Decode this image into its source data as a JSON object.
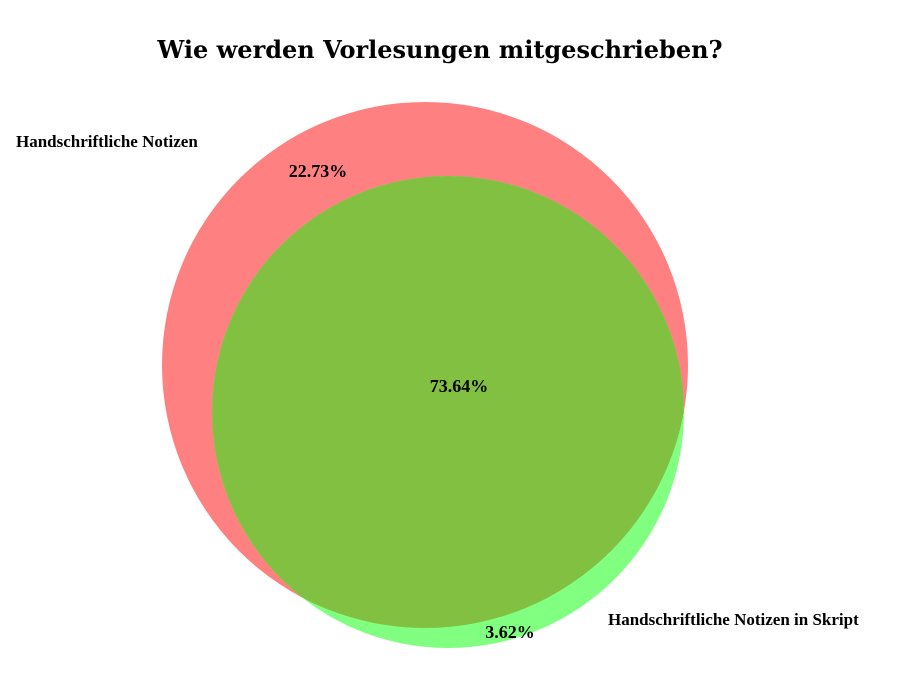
{
  "chart_data": {
    "type": "venn",
    "title": "Wie werden Vorlesungen mitgeschrieben?",
    "sets": [
      {
        "name": "Handschriftliche Notizen",
        "color": "#ff8080"
      },
      {
        "name": "Handschriftliche Notizen in Skript",
        "color": "#80ff80"
      }
    ],
    "overlap_color": "#82c042",
    "regions": [
      {
        "sets": [
          "Handschriftliche Notizen"
        ],
        "value": 22.73,
        "label": "22.73%"
      },
      {
        "sets": [
          "Handschriftliche Notizen",
          "Handschriftliche Notizen in Skript"
        ],
        "value": 73.64,
        "label": "73.64%"
      },
      {
        "sets": [
          "Handschriftliche Notizen in Skript"
        ],
        "value": 3.62,
        "label": "3.62%"
      }
    ]
  }
}
